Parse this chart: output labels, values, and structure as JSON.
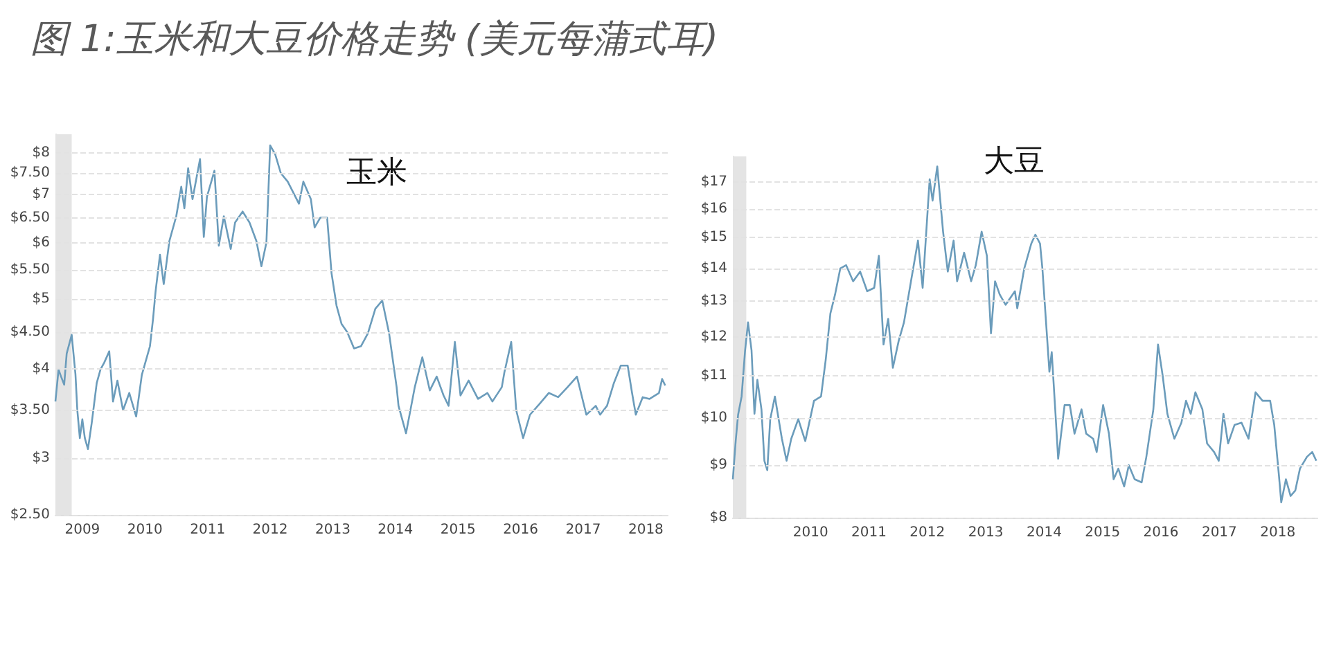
{
  "chart_data": [
    {
      "type": "line",
      "title": "图 1:玉米和大豆价格走势 (美元每蒲式耳)",
      "annotations": [
        "玉米"
      ],
      "log": "y",
      "grid": "y",
      "xlim": [
        2008.57,
        2018.35
      ],
      "xticks": [
        2009,
        2010,
        2011,
        2012,
        2013,
        2014,
        2015,
        2016,
        2017,
        2018
      ],
      "ylim": [
        2.5,
        8.5
      ],
      "yticks": [
        {
          "value": 2.5,
          "label": "$2.50"
        },
        {
          "value": 3,
          "label": "$3"
        },
        {
          "value": 3.5,
          "label": "$3.50"
        },
        {
          "value": 4,
          "label": "$4"
        },
        {
          "value": 4.5,
          "label": "$4.50"
        },
        {
          "value": 5,
          "label": "$5"
        },
        {
          "value": 5.5,
          "label": "$5.50"
        },
        {
          "value": 6,
          "label": "$6"
        },
        {
          "value": 6.5,
          "label": "$6.50"
        },
        {
          "value": 7,
          "label": "$7"
        },
        {
          "value": 7.5,
          "label": "$7.50"
        },
        {
          "value": 8,
          "label": "$8"
        }
      ],
      "bands": [
        {
          "axis": "x",
          "from": 2008.57,
          "to": 2008.83,
          "color": "#e4e4e4"
        }
      ],
      "series": [
        {
          "color": "#6b9cbb",
          "x": [
            2008.57,
            2008.62,
            2008.66,
            2008.71,
            2008.75,
            2008.83,
            2008.89,
            2008.92,
            2008.96,
            2009.0,
            2009.04,
            2009.09,
            2009.15,
            2009.23,
            2009.29,
            2009.35,
            2009.43,
            2009.49,
            2009.56,
            2009.65,
            2009.75,
            2009.86,
            2009.95,
            2010.08,
            2010.13,
            2010.17,
            2010.24,
            2010.3,
            2010.39,
            2010.5,
            2010.58,
            2010.63,
            2010.69,
            2010.76,
            2010.88,
            2010.94,
            2010.99,
            2011.11,
            2011.18,
            2011.26,
            2011.37,
            2011.44,
            2011.56,
            2011.67,
            2011.78,
            2011.86,
            2011.94,
            2012.0,
            2012.08,
            2012.17,
            2012.28,
            2012.46,
            2012.53,
            2012.65,
            2012.71,
            2012.8,
            2012.91,
            2012.98,
            2013.06,
            2013.14,
            2013.23,
            2013.34,
            2013.45,
            2013.56,
            2013.68,
            2013.79,
            2013.9,
            2014.02,
            2014.05,
            2014.17,
            2014.31,
            2014.43,
            2014.55,
            2014.66,
            2014.77,
            2014.85,
            2014.95,
            2015.04,
            2015.17,
            2015.32,
            2015.47,
            2015.55,
            2015.7,
            2015.74,
            2015.85,
            2015.93,
            2016.04,
            2016.15,
            2016.3,
            2016.45,
            2016.6,
            2016.75,
            2016.9,
            2017.05,
            2017.2,
            2017.27,
            2017.38,
            2017.49,
            2017.6,
            2017.71,
            2017.78,
            2017.84,
            2017.95,
            2018.06,
            2018.21,
            2018.26,
            2018.31
          ],
          "values": [
            3.6,
            3.99,
            3.9,
            3.8,
            4.2,
            4.46,
            3.93,
            3.5,
            3.2,
            3.4,
            3.2,
            3.09,
            3.36,
            3.82,
            3.99,
            4.08,
            4.23,
            3.6,
            3.85,
            3.5,
            3.7,
            3.43,
            3.92,
            4.3,
            4.7,
            5.13,
            5.77,
            5.25,
            6.03,
            6.53,
            7.18,
            6.7,
            7.62,
            6.9,
            7.85,
            6.11,
            6.95,
            7.56,
            5.94,
            6.53,
            5.88,
            6.4,
            6.63,
            6.4,
            6.03,
            5.56,
            6.0,
            8.2,
            7.97,
            7.5,
            7.3,
            6.8,
            7.3,
            6.9,
            6.3,
            6.5,
            6.5,
            5.44,
            4.9,
            4.62,
            4.5,
            4.27,
            4.3,
            4.48,
            4.85,
            4.98,
            4.48,
            3.77,
            3.55,
            3.25,
            3.77,
            4.15,
            3.73,
            3.9,
            3.67,
            3.55,
            4.36,
            3.67,
            3.85,
            3.63,
            3.7,
            3.6,
            3.77,
            3.95,
            4.36,
            3.5,
            3.2,
            3.45,
            3.57,
            3.7,
            3.65,
            3.77,
            3.9,
            3.45,
            3.55,
            3.45,
            3.55,
            3.82,
            4.04,
            4.04,
            3.7,
            3.45,
            3.65,
            3.63,
            3.7,
            3.87,
            3.79
          ]
        }
      ]
    },
    {
      "type": "line",
      "annotations": [
        "大豆"
      ],
      "log": "y",
      "grid": "y",
      "xlim": [
        2008.67,
        2018.68
      ],
      "xticks": [
        2010,
        2011,
        2012,
        2013,
        2014,
        2015,
        2016,
        2017,
        2018
      ],
      "ylim": [
        8,
        18
      ],
      "yticks": [
        {
          "value": 8,
          "label": "$8"
        },
        {
          "value": 9,
          "label": "$9"
        },
        {
          "value": 10,
          "label": "$10"
        },
        {
          "value": 11,
          "label": "$11"
        },
        {
          "value": 12,
          "label": "$12"
        },
        {
          "value": 13,
          "label": "$13"
        },
        {
          "value": 14,
          "label": "$14"
        },
        {
          "value": 15,
          "label": "$15"
        },
        {
          "value": 16,
          "label": "$16"
        },
        {
          "value": 17,
          "label": "$17"
        }
      ],
      "bands": [
        {
          "axis": "x",
          "from": 2008.67,
          "to": 2008.9,
          "color": "#e4e4e4"
        }
      ],
      "series": [
        {
          "color": "#6b9cbb",
          "x": [
            2008.67,
            2008.72,
            2008.76,
            2008.82,
            2008.88,
            2008.93,
            2008.99,
            2009.04,
            2009.09,
            2009.16,
            2009.21,
            2009.26,
            2009.31,
            2009.39,
            2009.51,
            2009.59,
            2009.67,
            2009.79,
            2009.91,
            2010.06,
            2010.18,
            2010.26,
            2010.34,
            2010.42,
            2010.51,
            2010.61,
            2010.73,
            2010.85,
            2010.97,
            2011.09,
            2011.17,
            2011.25,
            2011.33,
            2011.41,
            2011.51,
            2011.6,
            2011.72,
            2011.84,
            2011.92,
            2012.04,
            2012.09,
            2012.17,
            2012.27,
            2012.35,
            2012.45,
            2012.51,
            2012.63,
            2012.75,
            2012.83,
            2012.93,
            2013.02,
            2013.09,
            2013.16,
            2013.24,
            2013.34,
            2013.5,
            2013.54,
            2013.66,
            2013.78,
            2013.85,
            2013.93,
            2013.97,
            2014.05,
            2014.09,
            2014.13,
            2014.19,
            2014.24,
            2014.35,
            2014.44,
            2014.52,
            2014.64,
            2014.72,
            2014.84,
            2014.9,
            2015.01,
            2015.11,
            2015.19,
            2015.27,
            2015.37,
            2015.45,
            2015.55,
            2015.67,
            2015.75,
            2015.87,
            2015.95,
            2016.03,
            2016.11,
            2016.23,
            2016.35,
            2016.43,
            2016.51,
            2016.59,
            2016.71,
            2016.79,
            2016.91,
            2016.99,
            2017.07,
            2017.15,
            2017.26,
            2017.38,
            2017.5,
            2017.62,
            2017.74,
            2017.87,
            2017.94,
            2018.02,
            2018.06,
            2018.14,
            2018.22,
            2018.3,
            2018.38,
            2018.5,
            2018.59,
            2018.66
          ],
          "values": [
            8.72,
            9.52,
            10.08,
            10.5,
            11.65,
            12.4,
            11.65,
            10.1,
            10.9,
            10.2,
            9.09,
            8.9,
            9.98,
            10.5,
            9.55,
            9.09,
            9.55,
            9.98,
            9.5,
            10.4,
            10.5,
            11.4,
            12.65,
            13.2,
            14.0,
            14.1,
            13.6,
            13.9,
            13.3,
            13.4,
            14.4,
            11.8,
            12.5,
            11.2,
            11.9,
            12.4,
            13.6,
            14.9,
            13.4,
            17.1,
            16.3,
            17.6,
            15.2,
            13.9,
            14.9,
            13.6,
            14.5,
            13.6,
            14.1,
            15.2,
            14.4,
            12.1,
            13.6,
            13.2,
            12.9,
            13.3,
            12.8,
            14.0,
            14.8,
            15.1,
            14.8,
            14.0,
            12.0,
            11.1,
            11.6,
            10.2,
            9.13,
            10.3,
            10.3,
            9.66,
            10.2,
            9.66,
            9.55,
            9.27,
            10.3,
            9.66,
            8.72,
            8.93,
            8.58,
            9.0,
            8.72,
            8.66,
            9.17,
            10.2,
            11.8,
            11.0,
            10.1,
            9.55,
            9.9,
            10.4,
            10.1,
            10.6,
            10.2,
            9.45,
            9.27,
            9.09,
            10.1,
            9.45,
            9.85,
            9.9,
            9.55,
            10.6,
            10.4,
            10.4,
            9.85,
            8.8,
            8.28,
            8.72,
            8.4,
            8.5,
            8.93,
            9.17,
            9.27,
            9.09
          ]
        }
      ]
    }
  ]
}
